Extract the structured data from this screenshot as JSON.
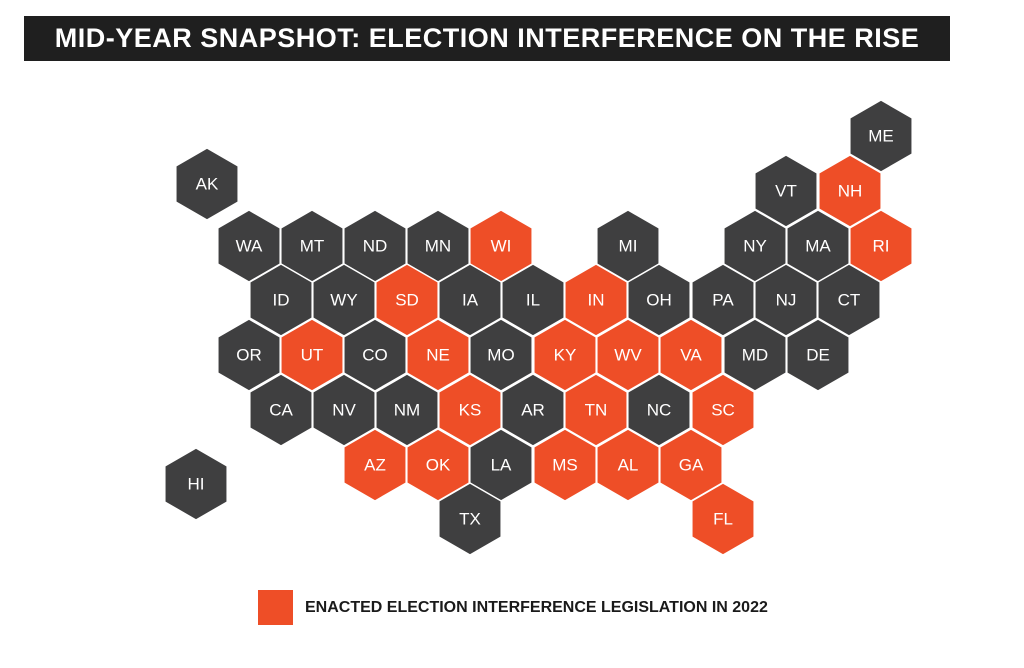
{
  "title": "MID-YEAR SNAPSHOT: ELECTION INTERFERENCE ON THE RISE",
  "colors": {
    "enacted": "#ee4e27",
    "other": "#3f3f40",
    "title_bg": "#1f1f1f"
  },
  "legend": {
    "label": "ENACTED ELECTION INTERFERENCE LEGISLATION IN 2022"
  },
  "states": [
    {
      "abbr": "ME",
      "enacted": false
    },
    {
      "abbr": "AK",
      "enacted": false
    },
    {
      "abbr": "VT",
      "enacted": false
    },
    {
      "abbr": "NH",
      "enacted": true
    },
    {
      "abbr": "WA",
      "enacted": false
    },
    {
      "abbr": "MT",
      "enacted": false
    },
    {
      "abbr": "ND",
      "enacted": false
    },
    {
      "abbr": "MN",
      "enacted": false
    },
    {
      "abbr": "WI",
      "enacted": true
    },
    {
      "abbr": "MI",
      "enacted": false
    },
    {
      "abbr": "NY",
      "enacted": false
    },
    {
      "abbr": "MA",
      "enacted": false
    },
    {
      "abbr": "RI",
      "enacted": true
    },
    {
      "abbr": "ID",
      "enacted": false
    },
    {
      "abbr": "WY",
      "enacted": false
    },
    {
      "abbr": "SD",
      "enacted": true
    },
    {
      "abbr": "IA",
      "enacted": false
    },
    {
      "abbr": "IL",
      "enacted": false
    },
    {
      "abbr": "IN",
      "enacted": true
    },
    {
      "abbr": "OH",
      "enacted": false
    },
    {
      "abbr": "PA",
      "enacted": false
    },
    {
      "abbr": "NJ",
      "enacted": false
    },
    {
      "abbr": "CT",
      "enacted": false
    },
    {
      "abbr": "OR",
      "enacted": false
    },
    {
      "abbr": "UT",
      "enacted": true
    },
    {
      "abbr": "CO",
      "enacted": false
    },
    {
      "abbr": "NE",
      "enacted": true
    },
    {
      "abbr": "MO",
      "enacted": false
    },
    {
      "abbr": "KY",
      "enacted": true
    },
    {
      "abbr": "WV",
      "enacted": true
    },
    {
      "abbr": "VA",
      "enacted": true
    },
    {
      "abbr": "MD",
      "enacted": false
    },
    {
      "abbr": "DE",
      "enacted": false
    },
    {
      "abbr": "CA",
      "enacted": false
    },
    {
      "abbr": "NV",
      "enacted": false
    },
    {
      "abbr": "NM",
      "enacted": false
    },
    {
      "abbr": "KS",
      "enacted": true
    },
    {
      "abbr": "AR",
      "enacted": false
    },
    {
      "abbr": "TN",
      "enacted": true
    },
    {
      "abbr": "NC",
      "enacted": false
    },
    {
      "abbr": "SC",
      "enacted": true
    },
    {
      "abbr": "AZ",
      "enacted": true
    },
    {
      "abbr": "OK",
      "enacted": true
    },
    {
      "abbr": "LA",
      "enacted": false
    },
    {
      "abbr": "MS",
      "enacted": true
    },
    {
      "abbr": "AL",
      "enacted": true
    },
    {
      "abbr": "GA",
      "enacted": true
    },
    {
      "abbr": "HI",
      "enacted": false
    },
    {
      "abbr": "TX",
      "enacted": false
    },
    {
      "abbr": "FL",
      "enacted": true
    }
  ]
}
